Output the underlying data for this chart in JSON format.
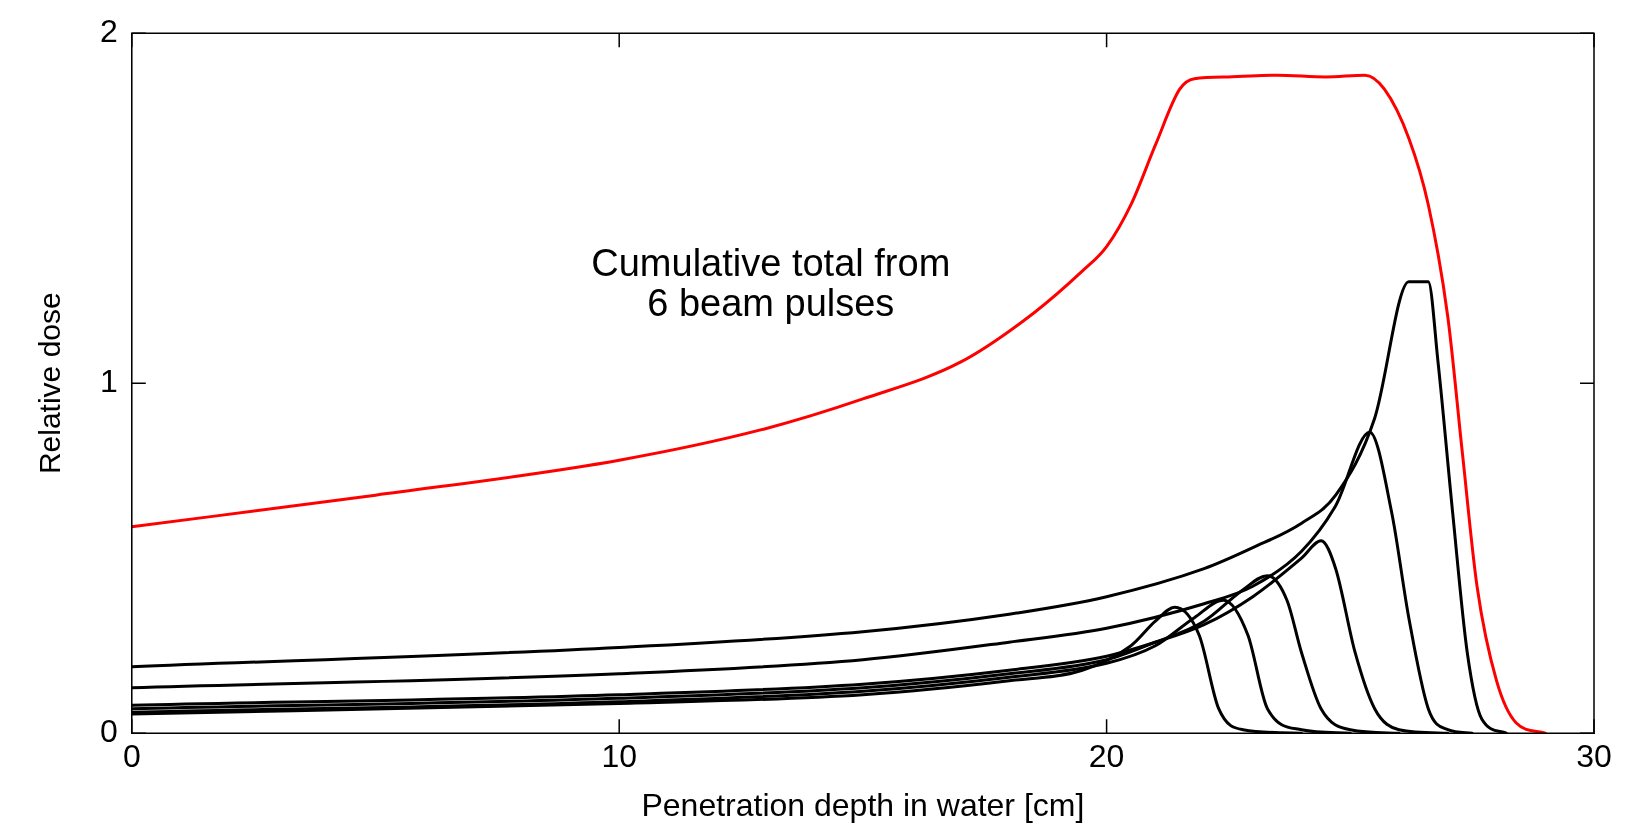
{
  "chart_data": {
    "type": "line",
    "xlabel": "Penetration depth in water [cm]",
    "ylabel": "Relative dose",
    "xlim": [
      0,
      30
    ],
    "ylim": [
      0,
      2
    ],
    "xticks": [
      0,
      10,
      20,
      30
    ],
    "yticks": [
      0,
      1,
      2
    ],
    "grid": false,
    "legend": false,
    "marker": "none",
    "line_style": "solid",
    "annotations": [
      "Cumulative total from\n6 beam pulses"
    ],
    "series": [
      {
        "color": "#ff0000",
        "x": [
          0,
          5,
          10,
          13,
          15,
          17,
          18.5,
          19.5,
          20,
          20.5,
          21,
          21.5,
          21.8,
          22.5,
          23.5,
          24.5,
          25.3,
          25.7,
          26.2,
          26.6,
          27,
          27.3,
          27.6,
          28,
          28.4,
          29
        ],
        "values": [
          0.59,
          0.68,
          0.78,
          0.87,
          0.955,
          1.06,
          1.2,
          1.32,
          1.39,
          1.51,
          1.68,
          1.84,
          1.87,
          1.875,
          1.88,
          1.875,
          1.88,
          1.84,
          1.7,
          1.51,
          1.19,
          0.8,
          0.42,
          0.15,
          0.03,
          0
        ]
      },
      {
        "color": "#000000",
        "x": [
          0,
          10,
          15,
          18,
          20,
          22,
          23,
          24,
          24.7,
          25.5,
          26.2,
          26.4,
          26.6,
          26.8,
          27.1,
          27.4,
          27.7,
          28.2
        ],
        "values": [
          0.19,
          0.245,
          0.29,
          0.34,
          0.39,
          0.47,
          0.53,
          0.6,
          0.68,
          0.9,
          1.29,
          1.29,
          1.29,
          1.06,
          0.63,
          0.23,
          0.04,
          0
        ]
      },
      {
        "color": "#000000",
        "x": [
          0,
          10,
          15,
          18,
          20,
          22,
          23,
          24,
          24.7,
          25.4,
          25.85,
          26.2,
          26.6,
          27,
          27.5
        ],
        "values": [
          0.13,
          0.17,
          0.21,
          0.26,
          0.3,
          0.37,
          0.42,
          0.52,
          0.65,
          0.86,
          0.63,
          0.33,
          0.07,
          0.01,
          0
        ]
      },
      {
        "color": "#000000",
        "x": [
          0,
          10,
          15,
          18,
          20,
          21,
          22,
          23,
          24,
          24.4,
          24.7,
          25.1,
          25.5,
          26,
          27
        ],
        "values": [
          0.08,
          0.11,
          0.14,
          0.18,
          0.22,
          0.26,
          0.31,
          0.39,
          0.5,
          0.55,
          0.47,
          0.23,
          0.07,
          0.01,
          0
        ]
      },
      {
        "color": "#000000",
        "x": [
          0,
          10,
          15,
          18,
          20,
          21,
          22,
          22.8,
          23.3,
          23.7,
          24,
          24.4,
          25,
          26
        ],
        "values": [
          0.07,
          0.1,
          0.13,
          0.17,
          0.21,
          0.26,
          0.32,
          0.41,
          0.45,
          0.38,
          0.23,
          0.07,
          0.01,
          0
        ]
      },
      {
        "color": "#000000",
        "x": [
          0,
          10,
          15,
          18,
          20,
          21,
          21.8,
          22.4,
          22.9,
          23.3,
          24,
          25
        ],
        "values": [
          0.06,
          0.09,
          0.12,
          0.16,
          0.2,
          0.25,
          0.33,
          0.38,
          0.28,
          0.07,
          0.01,
          0
        ]
      },
      {
        "color": "#000000",
        "x": [
          0,
          10,
          15,
          18,
          19.5,
          20.5,
          21,
          21.4,
          21.9,
          22.3,
          22.8,
          24
        ],
        "values": [
          0.055,
          0.085,
          0.11,
          0.15,
          0.18,
          0.25,
          0.32,
          0.36,
          0.28,
          0.07,
          0.01,
          0
        ]
      }
    ]
  }
}
